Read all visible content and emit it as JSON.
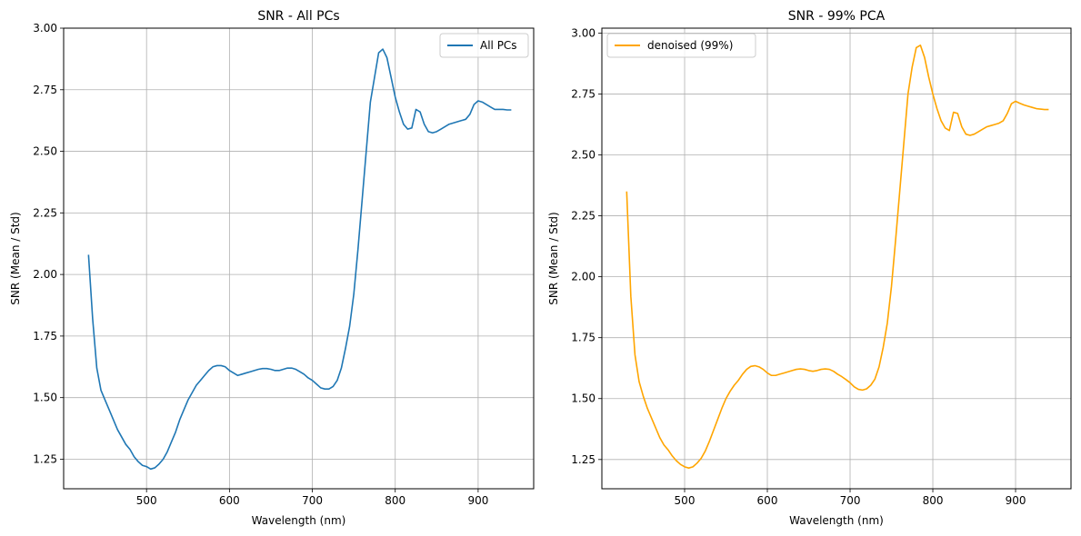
{
  "chart_data": [
    {
      "type": "line",
      "title": "SNR - All PCs",
      "xlabel": "Wavelength (nm)",
      "ylabel": "SNR (Mean / Std)",
      "xlim": [
        400,
        967
      ],
      "ylim": [
        1.13,
        3.0
      ],
      "xticks": [
        500,
        600,
        700,
        800,
        900
      ],
      "yticks": [
        1.25,
        1.5,
        1.75,
        2.0,
        2.25,
        2.5,
        2.75,
        3.0
      ],
      "ytick_labels": [
        "1.25",
        "1.50",
        "1.75",
        "2.00",
        "2.25",
        "2.50",
        "2.75",
        "3.00"
      ],
      "grid": true,
      "legend_position": "top-right",
      "series": [
        {
          "name": "All PCs",
          "color": "#1f77b4",
          "x": [
            430,
            435,
            440,
            445,
            450,
            455,
            460,
            465,
            470,
            475,
            480,
            485,
            490,
            495,
            500,
            505,
            510,
            515,
            520,
            525,
            530,
            535,
            540,
            545,
            550,
            555,
            560,
            565,
            570,
            575,
            580,
            585,
            590,
            595,
            600,
            605,
            610,
            615,
            620,
            625,
            630,
            635,
            640,
            645,
            650,
            655,
            660,
            665,
            670,
            675,
            680,
            685,
            690,
            695,
            700,
            705,
            710,
            715,
            720,
            725,
            730,
            735,
            740,
            745,
            750,
            755,
            760,
            765,
            770,
            775,
            780,
            785,
            790,
            795,
            800,
            805,
            810,
            815,
            820,
            825,
            830,
            835,
            840,
            845,
            850,
            855,
            860,
            865,
            870,
            875,
            880,
            885,
            890,
            895,
            900,
            905,
            910,
            915,
            920,
            925,
            930,
            935,
            940
          ],
          "y": [
            2.08,
            1.82,
            1.62,
            1.53,
            1.49,
            1.45,
            1.41,
            1.37,
            1.34,
            1.31,
            1.29,
            1.26,
            1.24,
            1.225,
            1.22,
            1.21,
            1.215,
            1.23,
            1.25,
            1.28,
            1.32,
            1.36,
            1.41,
            1.45,
            1.49,
            1.52,
            1.55,
            1.57,
            1.59,
            1.61,
            1.625,
            1.63,
            1.63,
            1.625,
            1.61,
            1.6,
            1.59,
            1.595,
            1.6,
            1.605,
            1.61,
            1.615,
            1.618,
            1.618,
            1.615,
            1.61,
            1.61,
            1.615,
            1.62,
            1.62,
            1.615,
            1.605,
            1.595,
            1.58,
            1.57,
            1.555,
            1.54,
            1.535,
            1.535,
            1.545,
            1.57,
            1.62,
            1.7,
            1.79,
            1.92,
            2.1,
            2.3,
            2.5,
            2.7,
            2.8,
            2.9,
            2.915,
            2.88,
            2.8,
            2.72,
            2.66,
            2.61,
            2.59,
            2.595,
            2.67,
            2.66,
            2.61,
            2.58,
            2.575,
            2.58,
            2.59,
            2.6,
            2.61,
            2.615,
            2.62,
            2.625,
            2.63,
            2.65,
            2.69,
            2.705,
            2.7,
            2.69,
            2.68,
            2.67,
            2.67,
            2.67,
            2.668,
            2.668
          ]
        }
      ]
    },
    {
      "type": "line",
      "title": "SNR - 99% PCA",
      "xlabel": "Wavelength (nm)",
      "ylabel": "SNR (Mean / Std)",
      "xlim": [
        400,
        967
      ],
      "ylim": [
        1.13,
        3.02
      ],
      "xticks": [
        500,
        600,
        700,
        800,
        900
      ],
      "yticks": [
        1.25,
        1.5,
        1.75,
        2.0,
        2.25,
        2.5,
        2.75,
        3.0
      ],
      "ytick_labels": [
        "1.25",
        "1.50",
        "1.75",
        "2.00",
        "2.25",
        "2.50",
        "2.75",
        "3.00"
      ],
      "grid": true,
      "legend_position": "top-left",
      "series": [
        {
          "name": "denoised (99%)",
          "color": "#ffa500",
          "x": [
            430,
            435,
            440,
            445,
            450,
            455,
            460,
            465,
            470,
            475,
            480,
            485,
            490,
            495,
            500,
            505,
            510,
            515,
            520,
            525,
            530,
            535,
            540,
            545,
            550,
            555,
            560,
            565,
            570,
            575,
            580,
            585,
            590,
            595,
            600,
            605,
            610,
            615,
            620,
            625,
            630,
            635,
            640,
            645,
            650,
            655,
            660,
            665,
            670,
            675,
            680,
            685,
            690,
            695,
            700,
            705,
            710,
            715,
            720,
            725,
            730,
            735,
            740,
            745,
            750,
            755,
            760,
            765,
            770,
            775,
            780,
            785,
            790,
            795,
            800,
            805,
            810,
            815,
            820,
            825,
            830,
            835,
            840,
            845,
            850,
            855,
            860,
            865,
            870,
            875,
            880,
            885,
            890,
            895,
            900,
            905,
            910,
            915,
            920,
            925,
            930,
            935,
            940
          ],
          "y": [
            2.35,
            1.92,
            1.68,
            1.57,
            1.51,
            1.46,
            1.42,
            1.38,
            1.34,
            1.31,
            1.29,
            1.265,
            1.245,
            1.23,
            1.22,
            1.215,
            1.22,
            1.235,
            1.255,
            1.285,
            1.325,
            1.37,
            1.415,
            1.46,
            1.5,
            1.53,
            1.555,
            1.575,
            1.6,
            1.62,
            1.632,
            1.635,
            1.63,
            1.62,
            1.605,
            1.595,
            1.595,
            1.6,
            1.605,
            1.61,
            1.615,
            1.62,
            1.622,
            1.62,
            1.615,
            1.612,
            1.615,
            1.62,
            1.622,
            1.62,
            1.612,
            1.6,
            1.59,
            1.578,
            1.565,
            1.548,
            1.538,
            1.535,
            1.54,
            1.555,
            1.58,
            1.63,
            1.71,
            1.81,
            1.96,
            2.15,
            2.35,
            2.55,
            2.75,
            2.86,
            2.94,
            2.95,
            2.9,
            2.82,
            2.75,
            2.69,
            2.64,
            2.61,
            2.6,
            2.675,
            2.67,
            2.615,
            2.585,
            2.58,
            2.585,
            2.595,
            2.605,
            2.615,
            2.62,
            2.625,
            2.63,
            2.64,
            2.67,
            2.71,
            2.72,
            2.712,
            2.705,
            2.7,
            2.695,
            2.69,
            2.688,
            2.686,
            2.686
          ]
        }
      ]
    }
  ]
}
